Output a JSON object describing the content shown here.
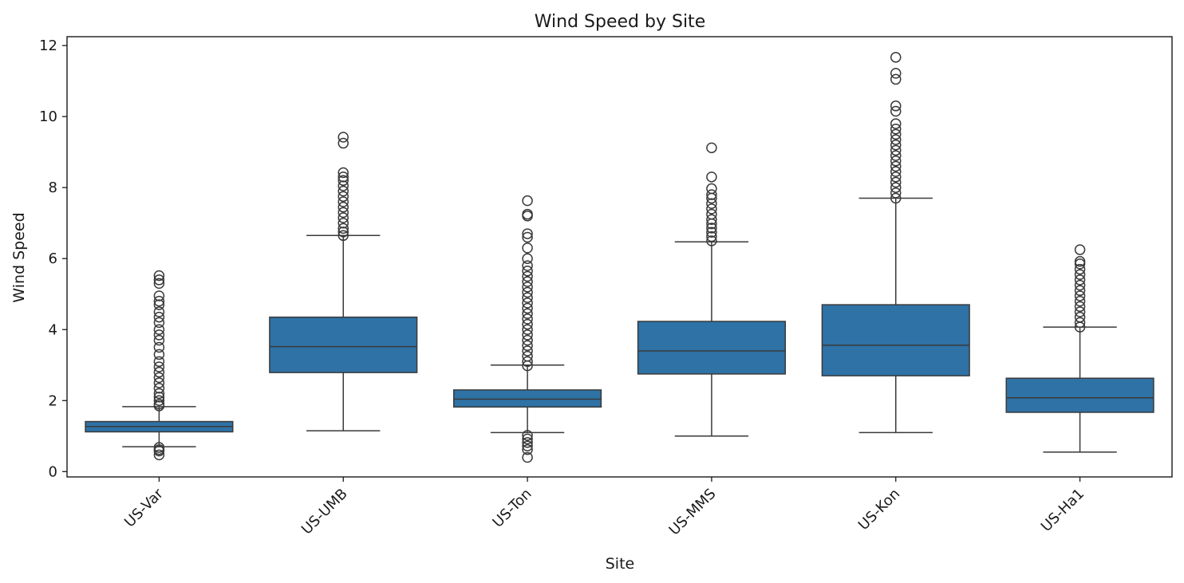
{
  "chart_data": {
    "type": "box",
    "title": "Wind Speed by Site",
    "xlabel": "Site",
    "ylabel": "Wind Speed",
    "ylim": [
      -0.15,
      12.25
    ],
    "yticks": [
      0,
      2,
      4,
      6,
      8,
      10,
      12
    ],
    "grid": false,
    "box_color": "#2e72a6",
    "line_color": "#3a3a3a",
    "categories": [
      "US-Var",
      "US-UMB",
      "US-Ton",
      "US-MMS",
      "US-Kon",
      "US-Ha1"
    ],
    "boxes": [
      {
        "site": "US-Var",
        "whislo": 0.7,
        "q1": 1.12,
        "med": 1.27,
        "q3": 1.41,
        "whishi": 1.83,
        "fliers_high": [
          1.85,
          1.9,
          2.0,
          2.1,
          2.2,
          2.35,
          2.5,
          2.65,
          2.8,
          2.95,
          3.1,
          3.3,
          3.5,
          3.7,
          3.85,
          4.0,
          4.2,
          4.35,
          4.5,
          4.7,
          4.8,
          4.95,
          5.3,
          5.4,
          5.52
        ],
        "fliers_low": [
          0.47,
          0.58,
          0.62,
          0.68
        ]
      },
      {
        "site": "US-UMB",
        "whislo": 1.15,
        "q1": 2.79,
        "med": 3.52,
        "q3": 4.35,
        "whishi": 6.65,
        "fliers_high": [
          6.65,
          6.75,
          6.85,
          7.0,
          7.15,
          7.3,
          7.45,
          7.6,
          7.75,
          7.9,
          8.05,
          8.2,
          8.3,
          8.42,
          9.25,
          9.42
        ],
        "fliers_low": []
      },
      {
        "site": "US-Ton",
        "whislo": 1.1,
        "q1": 1.82,
        "med": 2.04,
        "q3": 2.3,
        "whishi": 3.0,
        "fliers_high": [
          2.98,
          3.1,
          3.25,
          3.4,
          3.55,
          3.7,
          3.85,
          4.0,
          4.15,
          4.3,
          4.45,
          4.6,
          4.75,
          4.9,
          5.05,
          5.2,
          5.35,
          5.5,
          5.65,
          5.8,
          6.0,
          6.3,
          6.6,
          6.7,
          7.2,
          7.25,
          7.63
        ],
        "fliers_low": [
          0.4,
          0.62,
          0.72,
          0.82,
          0.92,
          1.02
        ]
      },
      {
        "site": "US-MMS",
        "whislo": 1.0,
        "q1": 2.75,
        "med": 3.4,
        "q3": 4.23,
        "whishi": 6.47,
        "fliers_high": [
          6.5,
          6.62,
          6.74,
          6.86,
          6.98,
          7.1,
          7.25,
          7.4,
          7.55,
          7.7,
          7.8,
          7.97,
          8.3,
          9.12
        ],
        "fliers_low": []
      },
      {
        "site": "US-Kon",
        "whislo": 1.1,
        "q1": 2.7,
        "med": 3.56,
        "q3": 4.7,
        "whishi": 7.7,
        "fliers_high": [
          7.7,
          7.85,
          8.0,
          8.15,
          8.3,
          8.45,
          8.6,
          8.75,
          8.9,
          9.05,
          9.2,
          9.35,
          9.5,
          9.65,
          9.8,
          10.15,
          10.3,
          11.05,
          11.22,
          11.67
        ],
        "fliers_low": []
      },
      {
        "site": "US-Ha1",
        "whislo": 0.55,
        "q1": 1.67,
        "med": 2.08,
        "q3": 2.63,
        "whishi": 4.07,
        "fliers_high": [
          4.07,
          4.2,
          4.35,
          4.5,
          4.65,
          4.8,
          4.95,
          5.1,
          5.25,
          5.4,
          5.55,
          5.7,
          5.85,
          5.92,
          6.25
        ],
        "fliers_low": []
      }
    ]
  }
}
